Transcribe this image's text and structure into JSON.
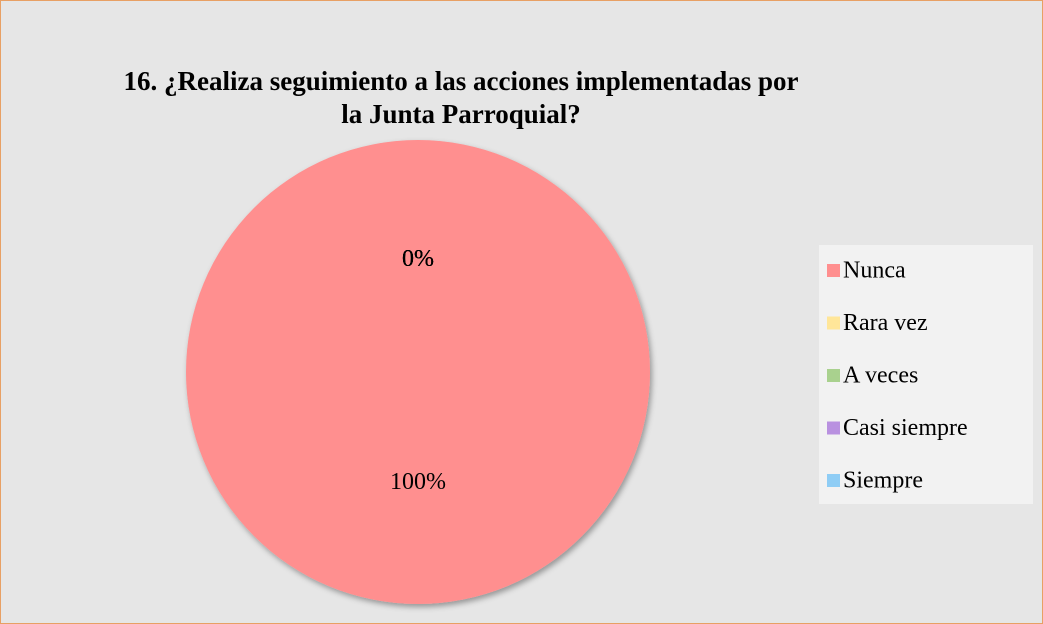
{
  "chart_data": {
    "type": "pie",
    "title": "16. ¿Realiza seguimiento a las acciones implementadas por la Junta Parroquial?",
    "categories": [
      "Nunca",
      "Rara vez",
      "A veces",
      "Casi siempre",
      "Siempre"
    ],
    "values": [
      100,
      0,
      0,
      0,
      0
    ],
    "value_labels": [
      "100%",
      "0%",
      "0%",
      "0%",
      "0%"
    ],
    "colors": [
      "#ff8f8f",
      "#ffe699",
      "#a9d18e",
      "#b991e0",
      "#8fcdf5"
    ],
    "legend": "right"
  }
}
